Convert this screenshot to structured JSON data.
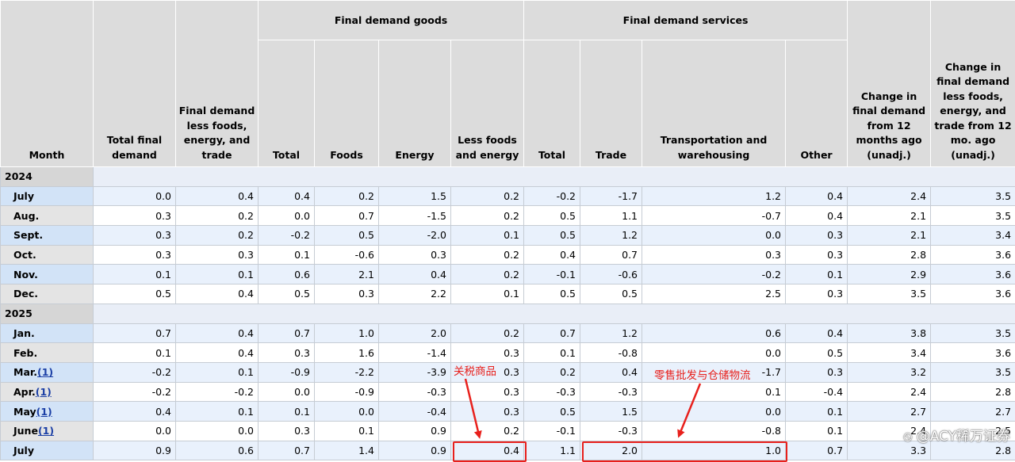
{
  "headers": {
    "month": "Month",
    "total_final_demand": "Total final demand",
    "fd_less": "Final demand less foods, energy, and trade",
    "goods_group": "Final demand goods",
    "services_group": "Final demand services",
    "goods_total": "Total",
    "goods_foods": "Foods",
    "goods_energy": "Energy",
    "goods_less": "Less foods and energy",
    "services_total": "Total",
    "services_trade": "Trade",
    "services_transport": "Transportation and warehousing",
    "services_other": "Other",
    "change_12m": "Change in final demand from 12 months ago (unadj.)",
    "change_core_12m": "Change in final demand less foods, energy, and trade from 12 mo. ago (unadj.)"
  },
  "years": [
    {
      "year": "2024",
      "rows": [
        {
          "month": "July",
          "fn": "",
          "v": [
            "0.0",
            "0.4",
            "0.4",
            "0.2",
            "1.5",
            "0.2",
            "-0.2",
            "-1.7",
            "1.2",
            "0.4",
            "2.4",
            "3.5"
          ]
        },
        {
          "month": "Aug.",
          "fn": "",
          "v": [
            "0.3",
            "0.2",
            "0.0",
            "0.7",
            "-1.5",
            "0.2",
            "0.5",
            "1.1",
            "-0.7",
            "0.4",
            "2.1",
            "3.5"
          ]
        },
        {
          "month": "Sept.",
          "fn": "",
          "v": [
            "0.3",
            "0.2",
            "-0.2",
            "0.5",
            "-2.0",
            "0.1",
            "0.5",
            "1.2",
            "0.0",
            "0.3",
            "2.1",
            "3.4"
          ]
        },
        {
          "month": "Oct.",
          "fn": "",
          "v": [
            "0.3",
            "0.3",
            "0.1",
            "-0.6",
            "0.3",
            "0.2",
            "0.4",
            "0.7",
            "0.3",
            "0.3",
            "2.8",
            "3.6"
          ]
        },
        {
          "month": "Nov.",
          "fn": "",
          "v": [
            "0.1",
            "0.1",
            "0.6",
            "2.1",
            "0.4",
            "0.2",
            "-0.1",
            "-0.6",
            "-0.2",
            "0.1",
            "2.9",
            "3.6"
          ]
        },
        {
          "month": "Dec.",
          "fn": "",
          "v": [
            "0.5",
            "0.4",
            "0.5",
            "0.3",
            "2.2",
            "0.1",
            "0.5",
            "0.5",
            "2.5",
            "0.3",
            "3.5",
            "3.6"
          ]
        }
      ]
    },
    {
      "year": "2025",
      "rows": [
        {
          "month": "Jan.",
          "fn": "",
          "v": [
            "0.7",
            "0.4",
            "0.7",
            "1.0",
            "2.0",
            "0.2",
            "0.7",
            "1.2",
            "0.6",
            "0.4",
            "3.8",
            "3.5"
          ]
        },
        {
          "month": "Feb.",
          "fn": "",
          "v": [
            "0.1",
            "0.4",
            "0.3",
            "1.6",
            "-1.4",
            "0.3",
            "0.1",
            "-0.8",
            "0.0",
            "0.5",
            "3.4",
            "3.6"
          ]
        },
        {
          "month": "Mar.",
          "fn": "(1)",
          "v": [
            "-0.2",
            "0.1",
            "-0.9",
            "-2.2",
            "-3.9",
            "0.3",
            "0.2",
            "0.4",
            "-1.7",
            "0.3",
            "3.2",
            "3.5"
          ]
        },
        {
          "month": "Apr.",
          "fn": "(1)",
          "v": [
            "-0.2",
            "-0.2",
            "0.0",
            "-0.9",
            "-0.3",
            "0.3",
            "-0.3",
            "-0.3",
            "0.1",
            "-0.4",
            "2.4",
            "2.8"
          ]
        },
        {
          "month": "May",
          "fn": "(1)",
          "v": [
            "0.4",
            "0.1",
            "0.1",
            "0.0",
            "-0.4",
            "0.3",
            "0.5",
            "1.5",
            "0.0",
            "0.1",
            "2.7",
            "2.7"
          ]
        },
        {
          "month": "June",
          "fn": "(1)",
          "v": [
            "0.0",
            "0.0",
            "0.3",
            "0.1",
            "0.9",
            "0.2",
            "-0.1",
            "-0.3",
            "-0.8",
            "0.1",
            "2.4",
            "2.5"
          ]
        },
        {
          "month": "July",
          "fn": "",
          "v": [
            "0.9",
            "0.6",
            "0.7",
            "1.4",
            "0.9",
            "0.4",
            "1.1",
            "2.0",
            "1.0",
            "0.7",
            "3.3",
            "2.8"
          ]
        }
      ]
    }
  ],
  "annotations": {
    "tariff_goods": "关税商品",
    "retail_wholesale": "零售批发与仓储物流",
    "color": "#e8201c"
  },
  "watermark": "⦸ @ACY稀万证券"
}
